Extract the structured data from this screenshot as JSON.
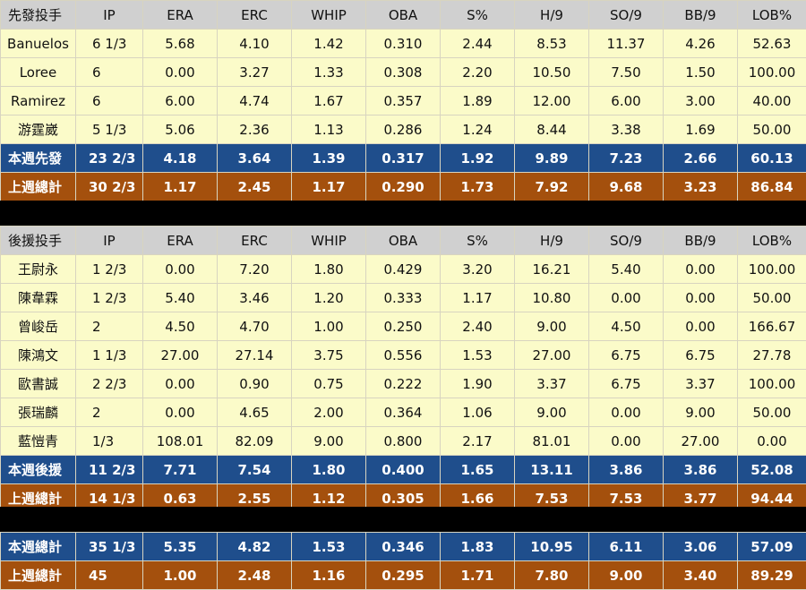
{
  "columns": [
    "IP",
    "ERA",
    "ERC",
    "WHIP",
    "OBA",
    "S%",
    "H/9",
    "SO/9",
    "BB/9",
    "LOB%"
  ],
  "starters": {
    "header": "先發投手",
    "rows": [
      [
        "Banuelos",
        "6 1/3",
        "5.68",
        "4.10",
        "1.42",
        "0.310",
        "2.44",
        "8.53",
        "11.37",
        "4.26",
        "52.63"
      ],
      [
        "Loree",
        "6",
        "0.00",
        "3.27",
        "1.33",
        "0.308",
        "2.20",
        "10.50",
        "7.50",
        "1.50",
        "100.00"
      ],
      [
        "Ramirez",
        "6",
        "6.00",
        "4.74",
        "1.67",
        "0.357",
        "1.89",
        "12.00",
        "6.00",
        "3.00",
        "40.00"
      ],
      [
        "游霆崴",
        "5 1/3",
        "5.06",
        "2.36",
        "1.13",
        "0.286",
        "1.24",
        "8.44",
        "3.38",
        "1.69",
        "50.00"
      ]
    ],
    "this_week": [
      "本週先發",
      "23 2/3",
      "4.18",
      "3.64",
      "1.39",
      "0.317",
      "1.92",
      "9.89",
      "7.23",
      "2.66",
      "60.13"
    ],
    "last_week": [
      "上週總計",
      "30 2/3",
      "1.17",
      "2.45",
      "1.17",
      "0.290",
      "1.73",
      "7.92",
      "9.68",
      "3.23",
      "86.84"
    ]
  },
  "relievers": {
    "header": "後援投手",
    "rows": [
      [
        "王尉永",
        "1 2/3",
        "0.00",
        "7.20",
        "1.80",
        "0.429",
        "3.20",
        "16.21",
        "5.40",
        "0.00",
        "100.00"
      ],
      [
        "陳韋霖",
        "1 2/3",
        "5.40",
        "3.46",
        "1.20",
        "0.333",
        "1.17",
        "10.80",
        "0.00",
        "0.00",
        "50.00"
      ],
      [
        "曾峻岳",
        "2",
        "4.50",
        "4.70",
        "1.00",
        "0.250",
        "2.40",
        "9.00",
        "4.50",
        "0.00",
        "166.67"
      ],
      [
        "陳鴻文",
        "1 1/3",
        "27.00",
        "27.14",
        "3.75",
        "0.556",
        "1.53",
        "27.00",
        "6.75",
        "6.75",
        "27.78"
      ],
      [
        "歐書誠",
        "2 2/3",
        "0.00",
        "0.90",
        "0.75",
        "0.222",
        "1.90",
        "3.37",
        "6.75",
        "3.37",
        "100.00"
      ],
      [
        "張瑞麟",
        "2",
        "0.00",
        "4.65",
        "2.00",
        "0.364",
        "1.06",
        "9.00",
        "0.00",
        "9.00",
        "50.00"
      ],
      [
        "藍愷青",
        "1/3",
        "108.01",
        "82.09",
        "9.00",
        "0.800",
        "2.17",
        "81.01",
        "0.00",
        "27.00",
        "0.00"
      ]
    ],
    "this_week": [
      "本週後援",
      "11 2/3",
      "7.71",
      "7.54",
      "1.80",
      "0.400",
      "1.65",
      "13.11",
      "3.86",
      "3.86",
      "52.08"
    ],
    "last_week": [
      "上週總計",
      "14 1/3",
      "0.63",
      "2.55",
      "1.12",
      "0.305",
      "1.66",
      "7.53",
      "7.53",
      "3.77",
      "94.44"
    ]
  },
  "totals": {
    "this_week": [
      "本週總計",
      "35 1/3",
      "5.35",
      "4.82",
      "1.53",
      "0.346",
      "1.83",
      "10.95",
      "6.11",
      "3.06",
      "57.09"
    ],
    "last_week": [
      "上週總計",
      "45",
      "1.00",
      "2.48",
      "1.16",
      "0.295",
      "1.71",
      "7.80",
      "9.00",
      "3.40",
      "89.29"
    ]
  },
  "colors": {
    "header_bg": "#d0d0d0",
    "row_bg": "#fbfbc9",
    "this_week_bg": "#1f4e8c",
    "last_week_bg": "#a4500d",
    "separator": "#000000"
  }
}
